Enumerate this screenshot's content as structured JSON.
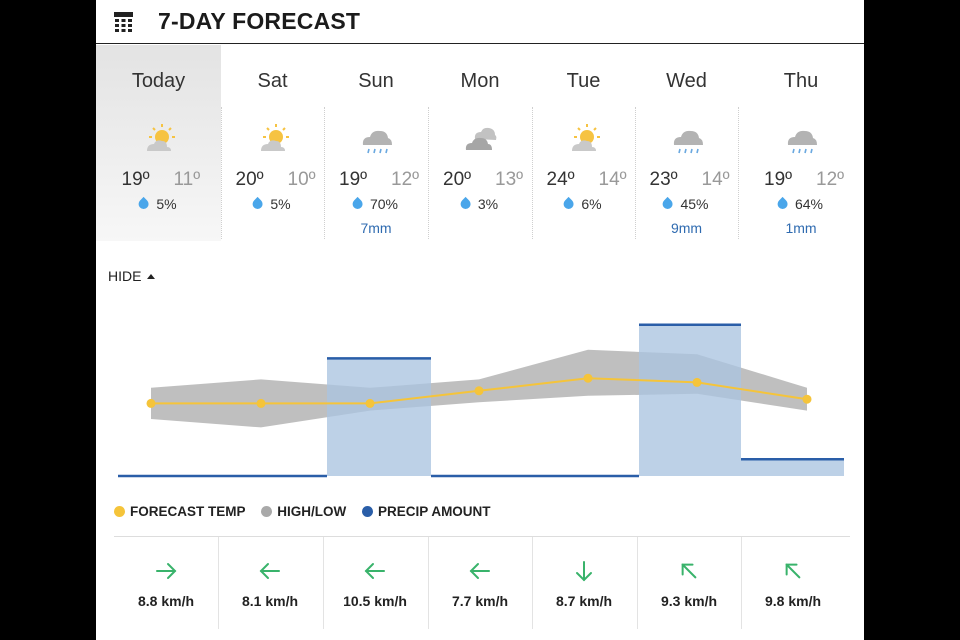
{
  "header": {
    "title": "7-DAY FORECAST",
    "icon": "calendar-icon"
  },
  "days": [
    {
      "name": "Today",
      "icon": "sun-cloud-icon",
      "high": "19º",
      "low": "11º",
      "pop": "5%",
      "precip": ""
    },
    {
      "name": "Sat",
      "icon": "sun-cloud-icon",
      "high": "20º",
      "low": "10º",
      "pop": "5%",
      "precip": ""
    },
    {
      "name": "Sun",
      "icon": "rain-cloud-icon",
      "high": "19º",
      "low": "12º",
      "pop": "70%",
      "precip": "7mm"
    },
    {
      "name": "Mon",
      "icon": "cloudy-icon",
      "high": "20º",
      "low": "13º",
      "pop": "3%",
      "precip": ""
    },
    {
      "name": "Tue",
      "icon": "sun-cloud-icon",
      "high": "24º",
      "low": "14º",
      "pop": "6%",
      "precip": ""
    },
    {
      "name": "Wed",
      "icon": "rain-cloud-icon",
      "high": "23º",
      "low": "14º",
      "pop": "45%",
      "precip": "9mm"
    },
    {
      "name": "Thu",
      "icon": "rain-cloud-icon",
      "high": "19º",
      "low": "12º",
      "pop": "64%",
      "precip": "1mm"
    }
  ],
  "toggle": {
    "label": "HIDE"
  },
  "legend": {
    "forecast_temp": "FORECAST TEMP",
    "high_low": "HIGH/LOW",
    "precip_amount": "PRECIP AMOUNT"
  },
  "colors": {
    "forecast_temp": "#f5c43a",
    "high_low": "#a9a9a9",
    "precip_amount": "#2a5ea8",
    "precip_fill": "#aac4e0"
  },
  "chart_data": {
    "type": "line",
    "categories": [
      "Today",
      "Sat",
      "Sun",
      "Mon",
      "Tue",
      "Wed",
      "Thu"
    ],
    "series": [
      {
        "name": "FORECAST TEMP",
        "values": [
          15,
          15,
          15,
          16.5,
          18,
          17.5,
          15.5
        ]
      },
      {
        "name": "HIGH/LOW high",
        "values": [
          19,
          20,
          19,
          20,
          24,
          23,
          19
        ]
      },
      {
        "name": "HIGH/LOW low",
        "values": [
          11,
          10,
          12,
          13,
          14,
          14,
          12
        ]
      },
      {
        "name": "PRECIP AMOUNT",
        "values": [
          0,
          0,
          7,
          0,
          0,
          9,
          1
        ]
      }
    ]
  },
  "wind": [
    {
      "speed": "8.8 km/h",
      "icon": "arrow-east-icon",
      "deg": 90
    },
    {
      "speed": "8.1 km/h",
      "icon": "arrow-west-icon",
      "deg": 270
    },
    {
      "speed": "10.5 km/h",
      "icon": "arrow-west-icon",
      "deg": 270
    },
    {
      "speed": "7.7 km/h",
      "icon": "arrow-west-icon",
      "deg": 270
    },
    {
      "speed": "8.7 km/h",
      "icon": "arrow-south-icon",
      "deg": 180
    },
    {
      "speed": "9.3 km/h",
      "icon": "arrow-northwest-icon",
      "deg": 315
    },
    {
      "speed": "9.8 km/h",
      "icon": "arrow-northwest-icon",
      "deg": 315
    }
  ]
}
